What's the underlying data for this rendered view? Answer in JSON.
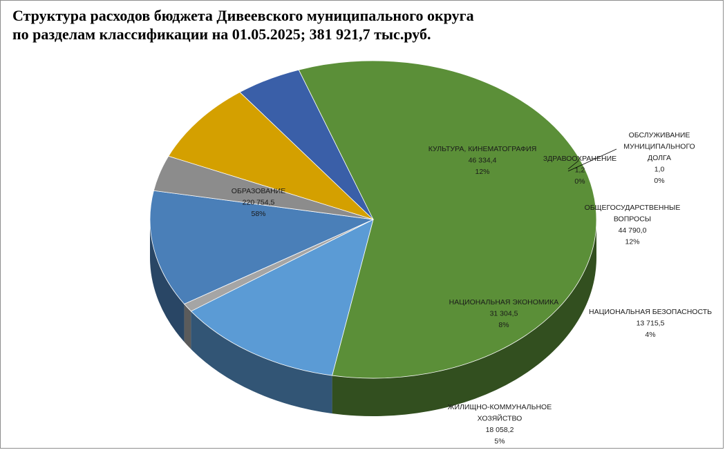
{
  "chart_data": {
    "type": "pie",
    "title_line1": "Структура расходов бюджета Дивеевского муниципального округа",
    "title_line2": "по разделам классификации на 01.05.2025; 381 921,7 тыс.руб.",
    "value_unit": "тыс.руб.",
    "total": 381921.7,
    "slices": [
      {
        "name_lines": [
          "ОБРАЗОВАНИЕ"
        ],
        "value": 220754.5,
        "value_label": "220 754,5",
        "percent_label": "58%",
        "color": "#5b8f38"
      },
      {
        "name_lines": [
          "КУЛЬТУРА, КИНЕМАТОГРАФИЯ"
        ],
        "value": 46334.4,
        "value_label": "46 334,4",
        "percent_label": "12%",
        "color": "#5b9bd5"
      },
      {
        "name_lines": [],
        "value": 3300.0,
        "value_label": "",
        "percent_label": "",
        "color": "#a5a5a5"
      },
      {
        "name_lines": [
          "ЗДРАВООХРАНЕНИЕ"
        ],
        "value": 1.2,
        "value_label": "1,2",
        "percent_label": "0%",
        "color": "#ffc000"
      },
      {
        "name_lines": [
          "ОБСЛУЖИВАНИЕ",
          "МУНИЦИПАЛЬНОГО",
          "ДОЛГА"
        ],
        "value": 1.0,
        "value_label": "1,0",
        "percent_label": "0%",
        "color": "#4472c4"
      },
      {
        "name_lines": [
          "ОБЩЕГОСУДАРСТВЕННЫЕ",
          "ВОПРОСЫ"
        ],
        "value": 44790.0,
        "value_label": "44 790,0",
        "percent_label": "12%",
        "color": "#4a7fb8"
      },
      {
        "name_lines": [
          "НАЦИОНАЛЬНАЯ БЕЗОПАСНОСТЬ"
        ],
        "value": 13715.5,
        "value_label": "13 715,5",
        "percent_label": "4%",
        "color": "#8c8c8c"
      },
      {
        "name_lines": [
          "НАЦИОНАЛЬНАЯ ЭКОНОМИКА"
        ],
        "value": 31304.5,
        "value_label": "31 304,5",
        "percent_label": "8%",
        "color": "#d4a000"
      },
      {
        "name_lines": [
          "ЖИЛИЩНО-КОММУНАЛЬНОЕ",
          "ХОЗЯЙСТВО"
        ],
        "value": 18058.2,
        "value_label": "18 058,2",
        "percent_label": "5%",
        "color": "#3a5fa8"
      }
    ]
  }
}
